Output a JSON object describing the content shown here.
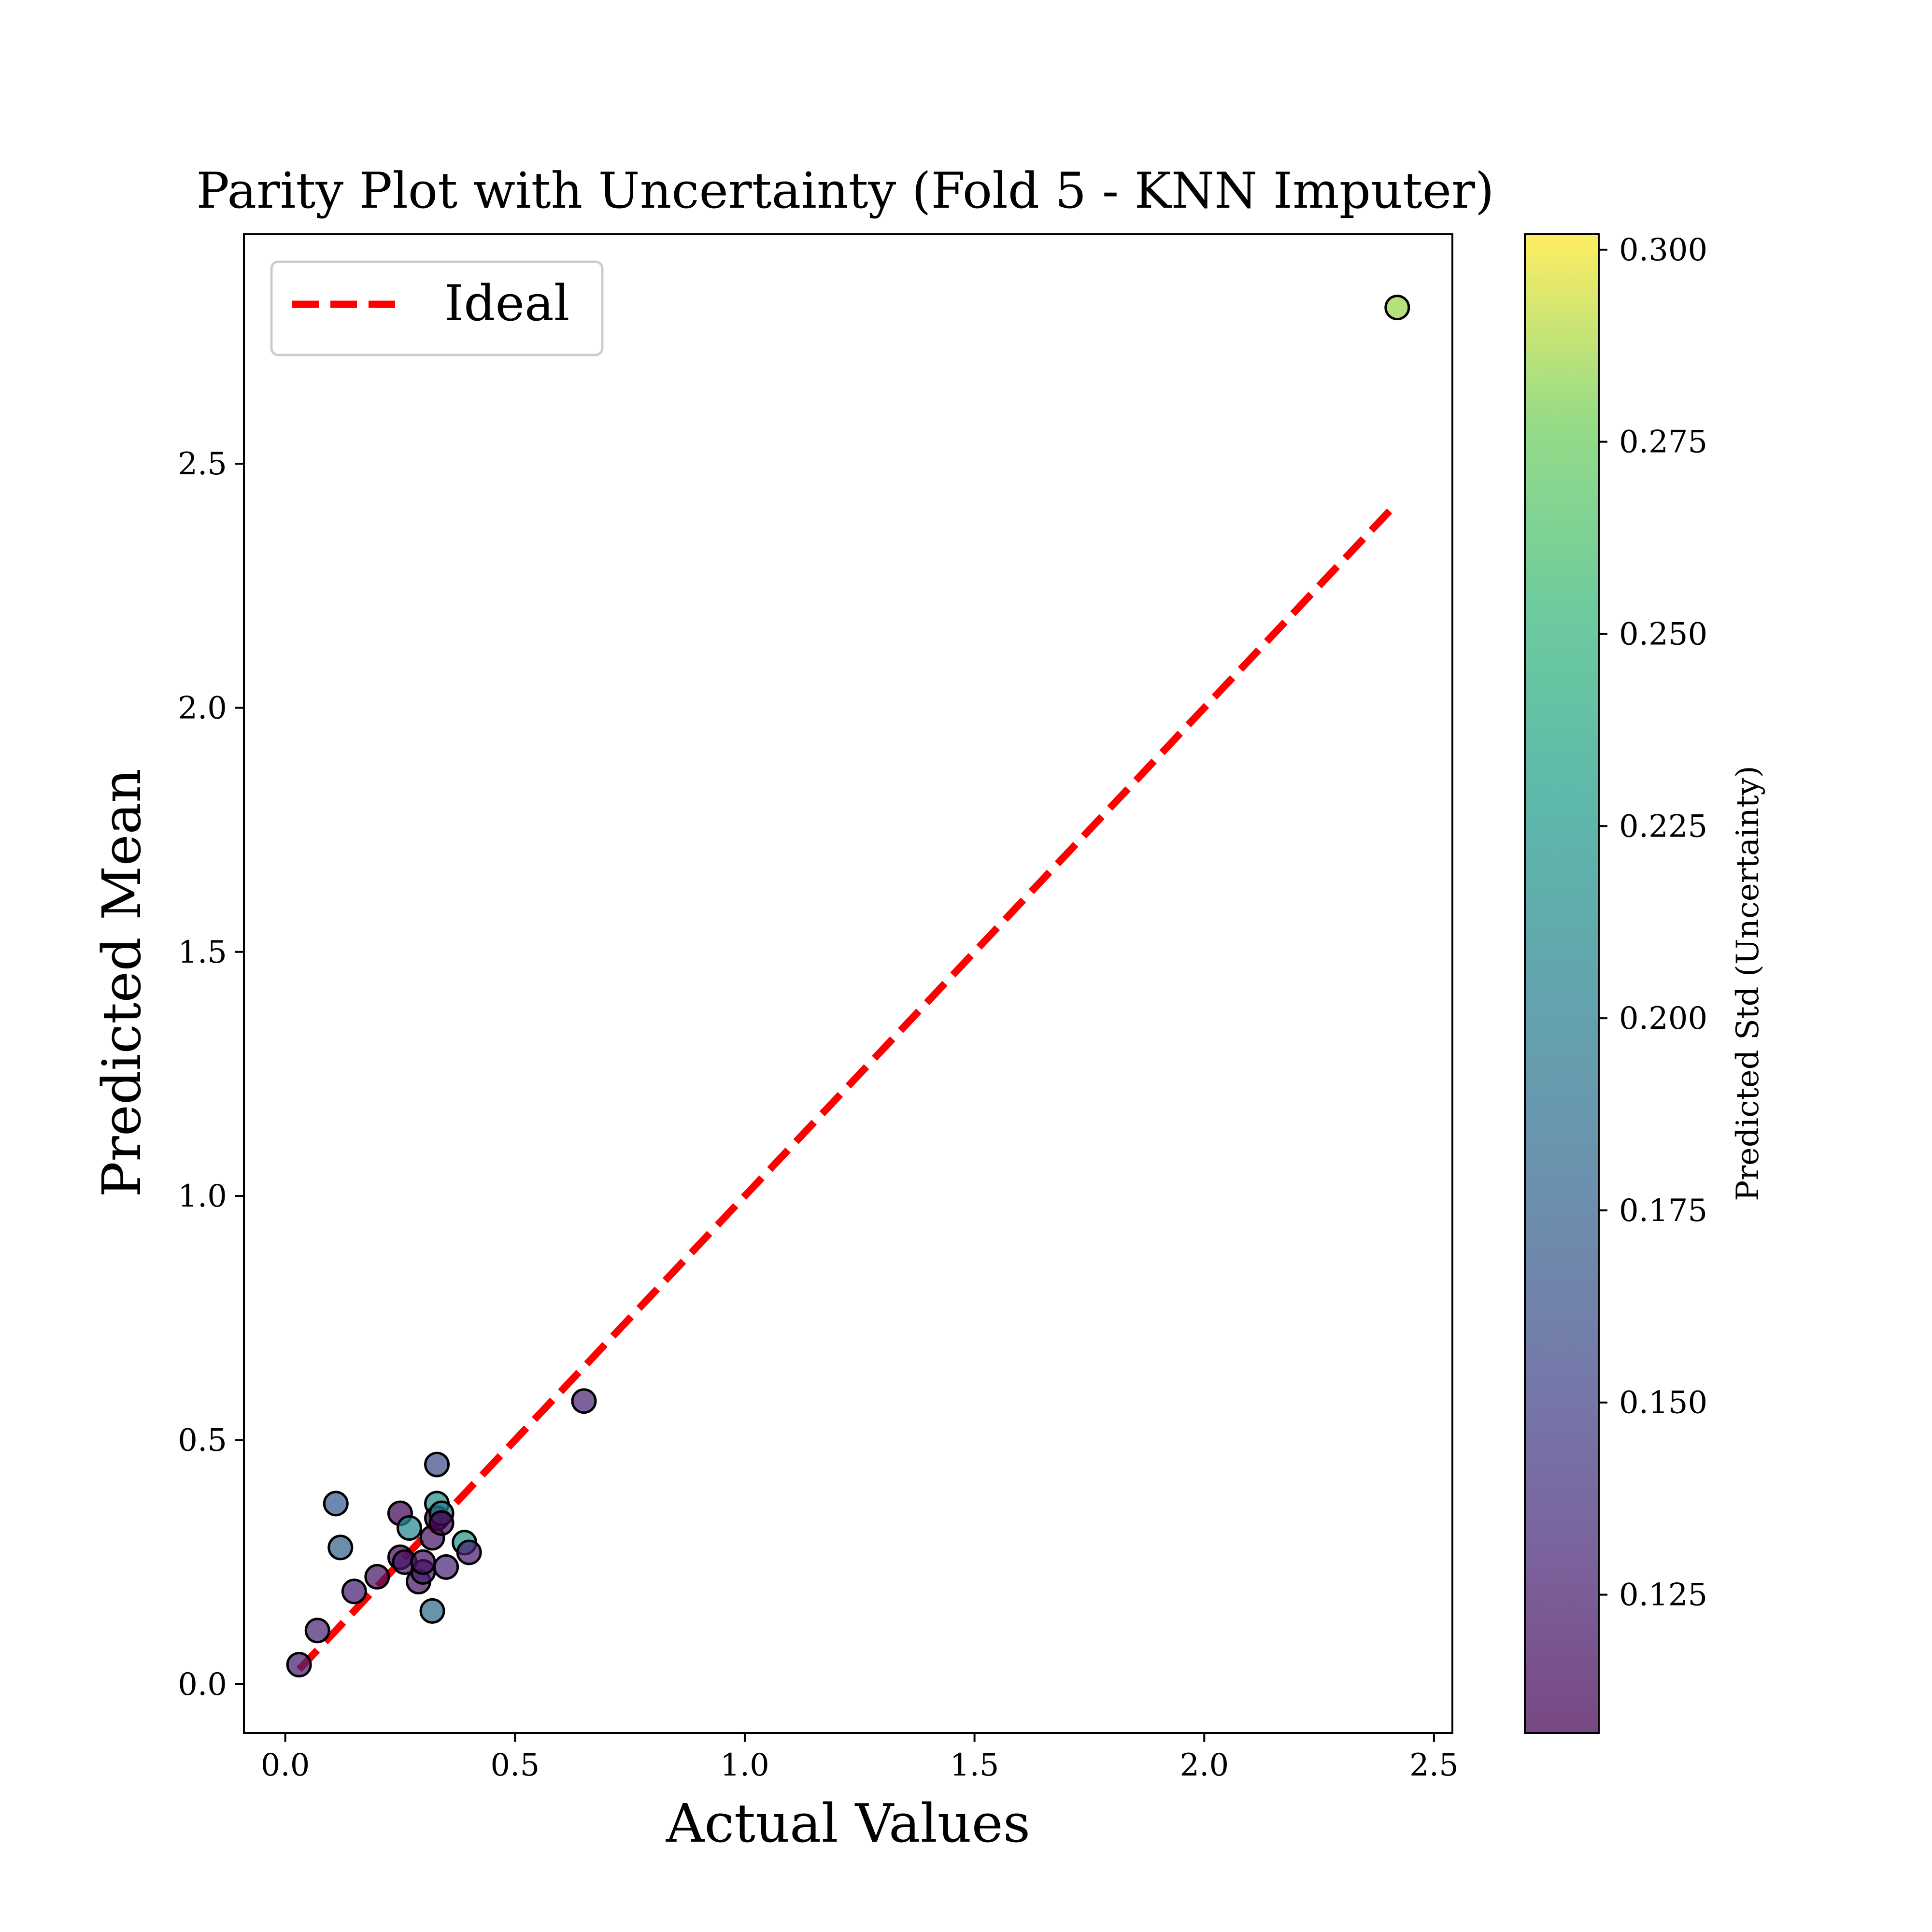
{
  "chart_data": {
    "type": "scatter",
    "title": "Parity Plot with Uncertainty (Fold 5 - KNN Imputer)",
    "xlabel": "Actual Values",
    "ylabel": "Predicted Mean",
    "xlim": [
      -0.09,
      2.54
    ],
    "ylim": [
      -0.1,
      2.97
    ],
    "xticks": [
      "0.0",
      "0.5",
      "1.0",
      "1.5",
      "2.0",
      "2.5"
    ],
    "xtick_values": [
      0.0,
      0.5,
      1.0,
      1.5,
      2.0,
      2.5
    ],
    "yticks": [
      "0.0",
      "0.5",
      "1.0",
      "1.5",
      "2.0",
      "2.5"
    ],
    "ytick_values": [
      0.0,
      0.5,
      1.0,
      1.5,
      2.0,
      2.5
    ],
    "grid": false,
    "legend": {
      "position": "top-left",
      "entries": [
        "Ideal"
      ]
    },
    "ideal_line": {
      "name": "Ideal",
      "x": [
        0.03,
        2.42
      ],
      "y": [
        0.03,
        2.42
      ],
      "color": "#ff0000",
      "style": "dashed"
    },
    "points": [
      {
        "x": 0.03,
        "y": 0.04,
        "std": 0.125
      },
      {
        "x": 0.07,
        "y": 0.11,
        "std": 0.13
      },
      {
        "x": 0.11,
        "y": 0.37,
        "std": 0.17
      },
      {
        "x": 0.12,
        "y": 0.28,
        "std": 0.175
      },
      {
        "x": 0.15,
        "y": 0.19,
        "std": 0.125
      },
      {
        "x": 0.2,
        "y": 0.22,
        "std": 0.12
      },
      {
        "x": 0.25,
        "y": 0.35,
        "std": 0.11
      },
      {
        "x": 0.25,
        "y": 0.26,
        "std": 0.115
      },
      {
        "x": 0.26,
        "y": 0.25,
        "std": 0.12
      },
      {
        "x": 0.27,
        "y": 0.32,
        "std": 0.21
      },
      {
        "x": 0.29,
        "y": 0.21,
        "std": 0.12
      },
      {
        "x": 0.3,
        "y": 0.23,
        "std": 0.125
      },
      {
        "x": 0.3,
        "y": 0.25,
        "std": 0.115
      },
      {
        "x": 0.32,
        "y": 0.3,
        "std": 0.12
      },
      {
        "x": 0.32,
        "y": 0.15,
        "std": 0.18
      },
      {
        "x": 0.33,
        "y": 0.45,
        "std": 0.16
      },
      {
        "x": 0.33,
        "y": 0.37,
        "std": 0.215
      },
      {
        "x": 0.33,
        "y": 0.34,
        "std": 0.11
      },
      {
        "x": 0.34,
        "y": 0.35,
        "std": 0.2
      },
      {
        "x": 0.34,
        "y": 0.33,
        "std": 0.11
      },
      {
        "x": 0.35,
        "y": 0.24,
        "std": 0.13
      },
      {
        "x": 0.39,
        "y": 0.29,
        "std": 0.22
      },
      {
        "x": 0.4,
        "y": 0.27,
        "std": 0.125
      },
      {
        "x": 0.65,
        "y": 0.58,
        "std": 0.13
      },
      {
        "x": 2.42,
        "y": 2.82,
        "std": 0.285
      }
    ],
    "colorbar": {
      "label": "Predicted Std (Uncertainty)",
      "range": [
        0.107,
        0.302
      ],
      "ticks": [
        "0.125",
        "0.150",
        "0.175",
        "0.200",
        "0.225",
        "0.250",
        "0.275",
        "0.300"
      ],
      "tick_values": [
        0.125,
        0.15,
        0.175,
        0.2,
        0.225,
        0.25,
        0.275,
        0.3
      ],
      "colormap": "viridis"
    }
  }
}
